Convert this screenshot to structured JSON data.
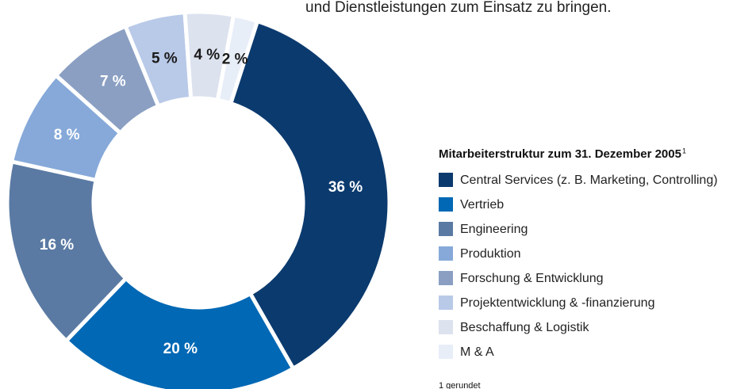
{
  "intro_text": "und Dienstleistungen zum Einsatz zu bringen.",
  "chart_data": {
    "type": "donut",
    "title": "Mitarbeiterstruktur zum 31. Dezember 2005",
    "title_footnote_mark": "1",
    "categories": [
      "Central Services (z. B. Marketing, Controlling)",
      "Vertrieb",
      "Engineering",
      "Produktion",
      "Forschung & Entwicklung",
      "Projektentwicklung & -finanzierung",
      "Beschaffung & Logistik",
      "M & A"
    ],
    "values": [
      36,
      20,
      16,
      8,
      7,
      5,
      4,
      2
    ],
    "value_labels": [
      "36 %",
      "20 %",
      "16 %",
      "8 %",
      "7 %",
      "5 %",
      "4 %",
      "2 %"
    ],
    "colors": [
      "#0b3a6e",
      "#0068b4",
      "#5a7aa3",
      "#86a9d9",
      "#8a9fc2",
      "#b9c9e8",
      "#dce2ee",
      "#e8eef8"
    ],
    "label_colors": [
      "#ffffff",
      "#ffffff",
      "#ffffff",
      "#ffffff",
      "#ffffff",
      "#1a1a1a",
      "#1a1a1a",
      "#1a1a1a"
    ],
    "footnote": "1 gerundet"
  }
}
